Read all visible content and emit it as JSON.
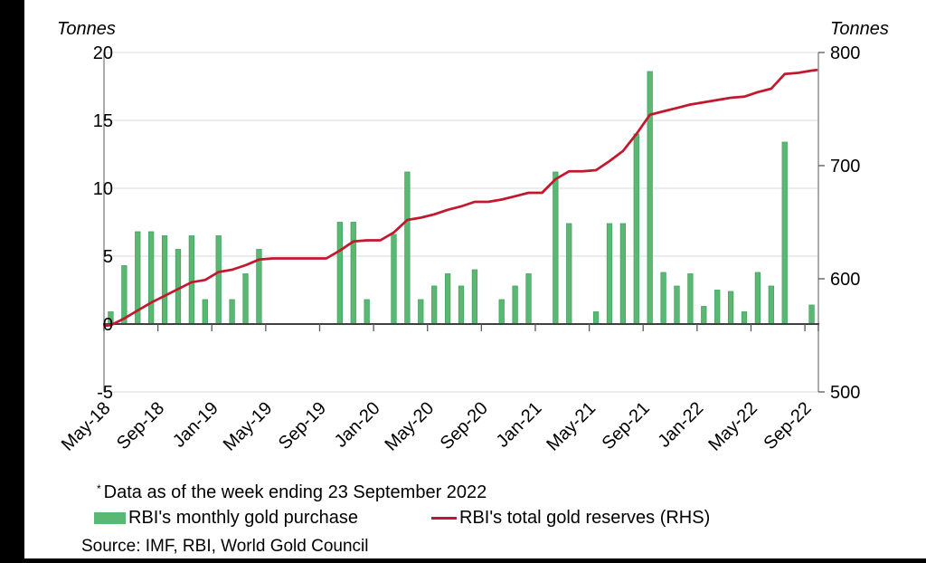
{
  "chart_data": {
    "type": "bar+line combo",
    "categories": [
      "May-18",
      "Jun-18",
      "Jul-18",
      "Aug-18",
      "Sep-18",
      "Oct-18",
      "Nov-18",
      "Dec-18",
      "Jan-19",
      "Feb-19",
      "Mar-19",
      "Apr-19",
      "May-19",
      "Jun-19",
      "Jul-19",
      "Aug-19",
      "Sep-19",
      "Oct-19",
      "Nov-19",
      "Dec-19",
      "Jan-20",
      "Feb-20",
      "Mar-20",
      "Apr-20",
      "May-20",
      "Jun-20",
      "Jul-20",
      "Aug-20",
      "Sep-20",
      "Oct-20",
      "Nov-20",
      "Dec-20",
      "Jan-21",
      "Feb-21",
      "Mar-21",
      "Apr-21",
      "May-21",
      "Jun-21",
      "Jul-21",
      "Aug-21",
      "Sep-21",
      "Oct-21",
      "Nov-21",
      "Dec-21",
      "Jan-22",
      "Feb-22",
      "Mar-22",
      "Apr-22",
      "May-22",
      "Jun-22",
      "Jul-22",
      "Aug-22",
      "Sep-22"
    ],
    "x_tick_labels": [
      "May-18",
      "Sep-18",
      "Jan-19",
      "May-19",
      "Sep-19",
      "Jan-20",
      "May-20",
      "Sep-20",
      "Jan-21",
      "May-21",
      "Sep-21",
      "Jan-22",
      "May-22",
      "Sep-22"
    ],
    "series": [
      {
        "name": "RBI's monthly gold purchase",
        "type": "bar",
        "axis": "left",
        "values": [
          0.9,
          4.3,
          6.8,
          6.8,
          6.5,
          5.5,
          6.5,
          1.8,
          6.5,
          1.8,
          3.7,
          5.5,
          0,
          0,
          0,
          0,
          0,
          7.5,
          7.5,
          1.8,
          0,
          6.6,
          11.2,
          1.8,
          2.8,
          3.7,
          2.8,
          4.0,
          0,
          1.8,
          2.8,
          3.7,
          0,
          11.2,
          7.4,
          0,
          0.9,
          7.4,
          7.4,
          14.0,
          18.6,
          3.8,
          2.8,
          3.7,
          1.3,
          2.5,
          2.4,
          0.9,
          3.8,
          2.8,
          13.4,
          0,
          1.4
        ]
      },
      {
        "name": "RBI's total gold reserves (RHS)",
        "type": "line",
        "axis": "right",
        "values": [
          559,
          565,
          572,
          579,
          585,
          591,
          597,
          599,
          606,
          608,
          612,
          617,
          618,
          618,
          618,
          618,
          618,
          625,
          633,
          634,
          634,
          641,
          652,
          654,
          657,
          661,
          664,
          668,
          668,
          670,
          673,
          676,
          676,
          688,
          695,
          695,
          696,
          704,
          713,
          728,
          745,
          748,
          751,
          754,
          756,
          758,
          760,
          761,
          765,
          768,
          781,
          782,
          784
        ]
      }
    ],
    "left_axis": {
      "title": "Tonnes",
      "ticks": [
        "20",
        "15",
        "10",
        "5",
        "0",
        "-5"
      ],
      "min": -5,
      "max": 20
    },
    "right_axis": {
      "title": "Tonnes",
      "ticks": [
        "800",
        "700",
        "600",
        "500"
      ],
      "min": 500,
      "max": 800
    },
    "grid": true,
    "legend_position": "bottom"
  },
  "footnote": {
    "marker": "*",
    "text": "Data as of the week ending 23 September 2022"
  },
  "legend": {
    "bar_label": "RBI's monthly gold purchase",
    "line_label": "RBI's total gold reserves (RHS)"
  },
  "source": "Source: IMF, RBI, World Gold Council",
  "colors": {
    "bar_fill": "#5bb872",
    "bar_border": "#45a363",
    "line": "#c2182e",
    "grid": "#d9d9d9",
    "axis_line": "#7f7f7f",
    "axis_bottom": "#404040",
    "tick": "#595959",
    "text": "#000000"
  }
}
